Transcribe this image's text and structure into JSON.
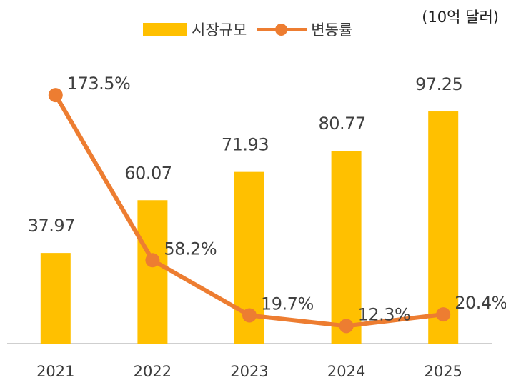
{
  "unit_label": "(10억 달러)",
  "legend": [
    {
      "label": "시장규모",
      "kind": "bar"
    },
    {
      "label": "변동률",
      "kind": "line"
    }
  ],
  "chart_data": {
    "type": "bar",
    "categories": [
      "2021",
      "2022",
      "2023",
      "2024",
      "2025"
    ],
    "series": [
      {
        "name": "시장규모",
        "type": "bar",
        "values": [
          37.97,
          60.07,
          71.93,
          80.77,
          97.25
        ],
        "labels": [
          "37.97",
          "60.07",
          "71.93",
          "80.77",
          "97.25"
        ],
        "color": "#FFC000"
      },
      {
        "name": "변동률",
        "type": "line",
        "values": [
          173.5,
          58.2,
          19.7,
          12.3,
          20.4
        ],
        "labels": [
          "173.5%",
          "58.2%",
          "19.7%",
          "12.3%",
          "20.4%"
        ],
        "color": "#ED7D31"
      }
    ],
    "ylim_bar": [
      0,
      120
    ],
    "ylim_line": [
      0,
      200
    ],
    "grid": false,
    "legend_position": "top"
  }
}
